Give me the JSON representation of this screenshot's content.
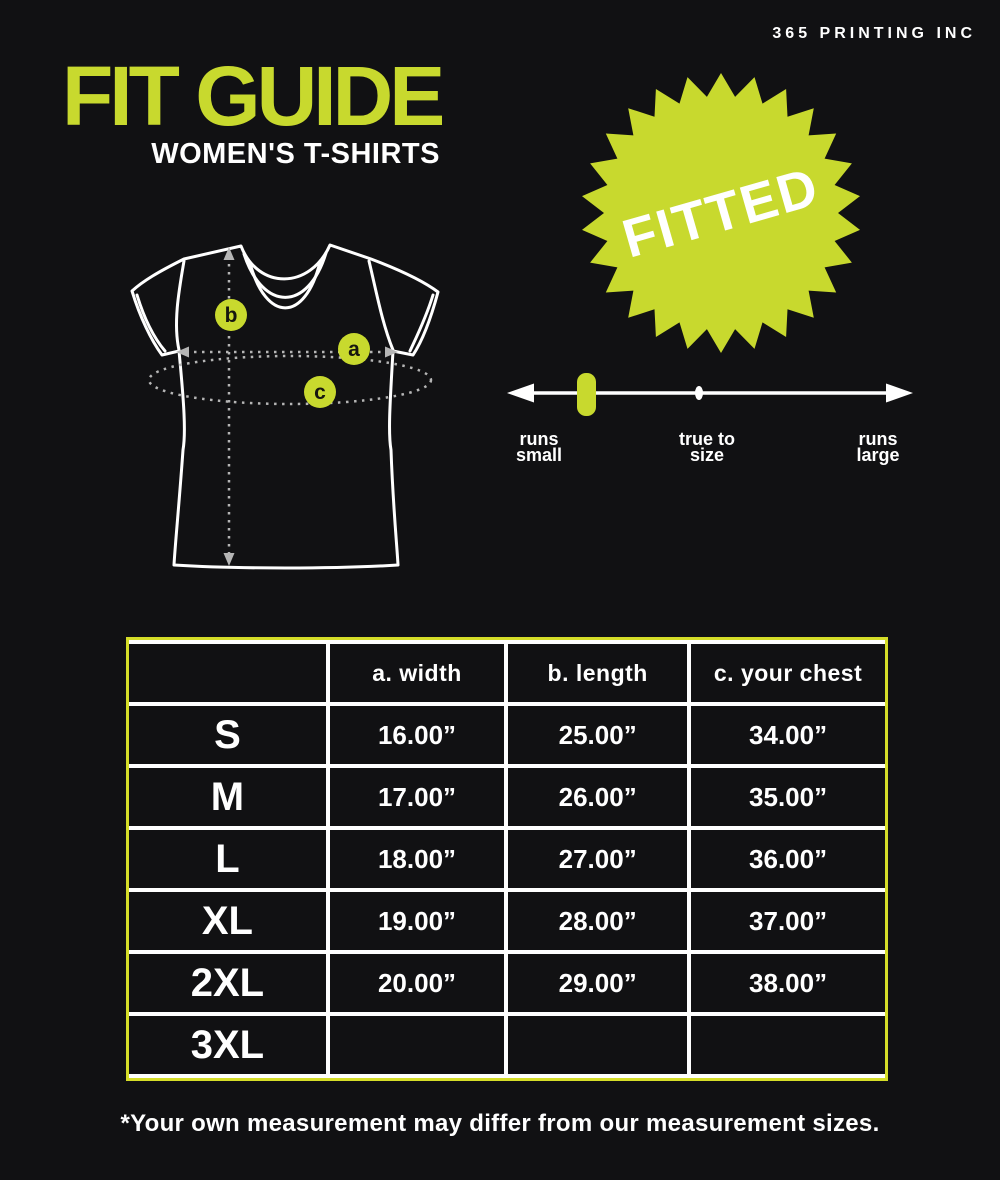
{
  "brand": "365 PRINTING INC",
  "header": {
    "title": "FIT GUIDE",
    "subtitle": "WOMEN'S T-SHIRTS"
  },
  "badge": {
    "label": "FITTED"
  },
  "diagram": {
    "markers": [
      {
        "letter": "b",
        "meaning": "length"
      },
      {
        "letter": "a",
        "meaning": "width"
      },
      {
        "letter": "c",
        "meaning": "your chest"
      }
    ]
  },
  "fit_scale": {
    "left": {
      "line1": "runs",
      "line2": "small"
    },
    "center": {
      "line1": "true to",
      "line2": "size"
    },
    "right": {
      "line1": "runs",
      "line2": "large"
    },
    "indicator_position": "runs small"
  },
  "table": {
    "headers": [
      "",
      "a. width",
      "b. length",
      "c. your chest"
    ],
    "rows": [
      {
        "size": "S",
        "width": "16.00”",
        "length": "25.00”",
        "chest": "34.00”"
      },
      {
        "size": "M",
        "width": "17.00”",
        "length": "26.00”",
        "chest": "35.00”"
      },
      {
        "size": "L",
        "width": "18.00”",
        "length": "27.00”",
        "chest": "36.00”"
      },
      {
        "size": "XL",
        "width": "19.00”",
        "length": "28.00”",
        "chest": "37.00”"
      },
      {
        "size": "2XL",
        "width": "20.00”",
        "length": "29.00”",
        "chest": "38.00”"
      },
      {
        "size": "3XL",
        "width": "",
        "length": "",
        "chest": ""
      }
    ]
  },
  "footnote": "*Your own measurement may differ from our measurement sizes.",
  "colors": {
    "background": "#111113",
    "accent": "#c8d92e",
    "table_border": "#d5dd28",
    "text": "#ffffff",
    "dotted": "#b5b5b5",
    "letter": "#16160f"
  }
}
